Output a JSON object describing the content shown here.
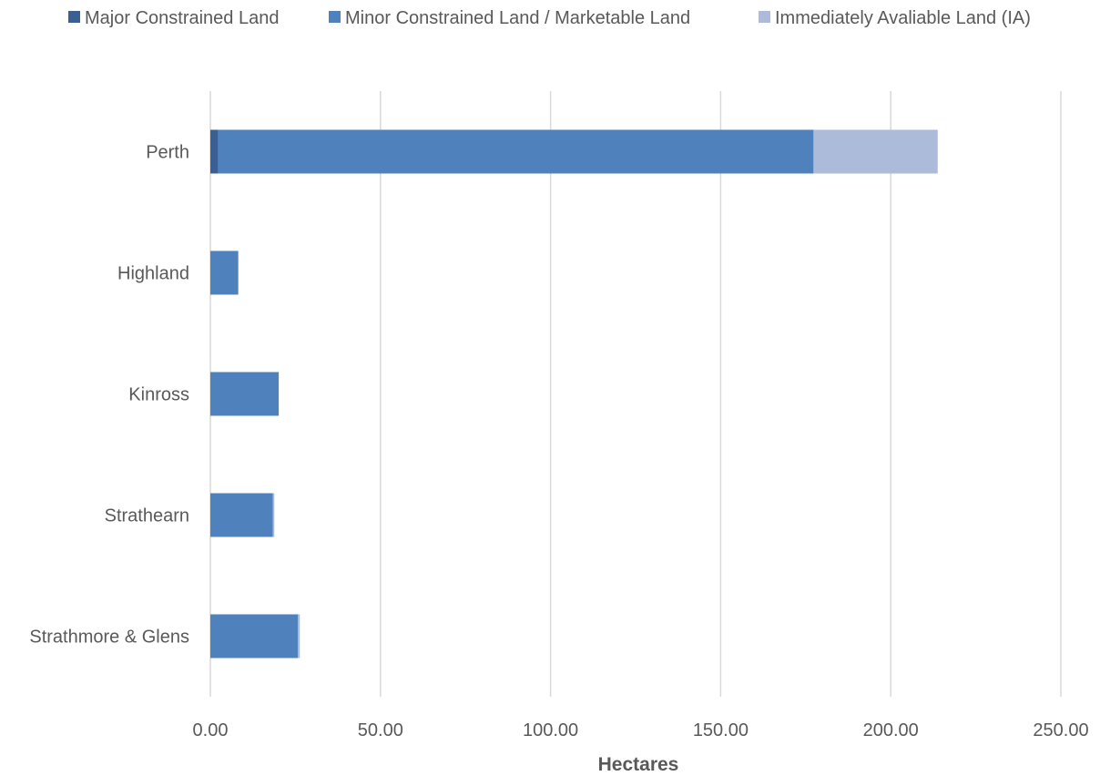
{
  "chart_data": {
    "type": "bar",
    "orientation": "horizontal",
    "stacked": true,
    "title": "",
    "xlabel": "Hectares",
    "ylabel": "",
    "xlim": [
      0,
      250
    ],
    "x_ticks": [
      "0.00",
      "50.00",
      "100.00",
      "150.00",
      "200.00",
      "250.00"
    ],
    "grid": "vertical",
    "legend_position": "top",
    "categories": [
      "Perth",
      "Highland",
      "Kinross",
      "Strathearn",
      "Strathmore & Glens"
    ],
    "series": [
      {
        "name": "Major Constrained Land",
        "color": "#3a5f95",
        "values": [
          2.3,
          0,
          0,
          0,
          0
        ]
      },
      {
        "name": "Minor Constrained Land / Marketable Land",
        "color": "#4f81bd",
        "values": [
          175.0,
          8.2,
          20.1,
          18.4,
          25.7
        ]
      },
      {
        "name": "Immediately Avaliable Land (IA)",
        "color": "#abbbd9",
        "values": [
          36.5,
          0,
          0,
          0.4,
          0.6
        ]
      }
    ]
  }
}
